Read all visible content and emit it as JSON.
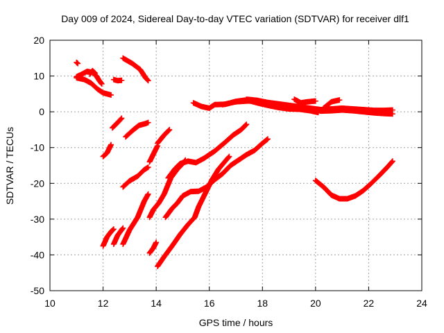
{
  "chart_data": {
    "type": "scatter",
    "title": "Day 009 of 2024, Sidereal Day-to-day VTEC variation (SDTVAR) for receiver dlf1",
    "xlabel": "GPS time / hours",
    "ylabel": "SDTVAR / TECUs",
    "xlim": [
      10,
      24
    ],
    "ylim": [
      -50,
      20
    ],
    "x_ticks": [
      10,
      12,
      14,
      16,
      18,
      20,
      22,
      24
    ],
    "y_ticks": [
      -50,
      -40,
      -30,
      -20,
      -10,
      0,
      10,
      20
    ],
    "x_tick_labels": [
      "10",
      "12",
      "14",
      "16",
      "18",
      "20",
      "22",
      "24"
    ],
    "y_tick_labels": [
      "-50",
      "-40",
      "-30",
      "-20",
      "-10",
      "0",
      "10",
      "20"
    ],
    "grid": true,
    "marker": "+",
    "color": "#ff0000",
    "series": [
      {
        "name": "arc-a",
        "points": [
          [
            11.0,
            13.8
          ],
          [
            11.05,
            13.5
          ]
        ]
      },
      {
        "name": "arc-b",
        "points": [
          [
            11.0,
            9.8
          ],
          [
            11.2,
            10.5
          ],
          [
            11.4,
            11.3
          ],
          [
            11.6,
            11.0
          ],
          [
            11.75,
            10.0
          ],
          [
            11.85,
            8.8
          ],
          [
            11.95,
            7.8
          ]
        ]
      },
      {
        "name": "arc-c",
        "points": [
          [
            11.0,
            9.5
          ],
          [
            11.3,
            9.0
          ],
          [
            11.55,
            8.0
          ],
          [
            11.8,
            6.3
          ],
          [
            12.0,
            5.3
          ],
          [
            12.3,
            4.7
          ]
        ]
      },
      {
        "name": "arc-d",
        "points": [
          [
            11.5,
            10.5
          ],
          [
            11.6,
            11.5
          ],
          [
            11.7,
            10.8
          ]
        ]
      },
      {
        "name": "arc-e",
        "points": [
          [
            12.4,
            9.0
          ],
          [
            12.55,
            8.7
          ],
          [
            12.7,
            8.8
          ]
        ]
      },
      {
        "name": "arc-f",
        "points": [
          [
            12.75,
            15.0
          ],
          [
            13.1,
            13.5
          ],
          [
            13.4,
            11.8
          ],
          [
            13.6,
            9.5
          ],
          [
            13.7,
            8.7
          ]
        ]
      },
      {
        "name": "arc-g",
        "points": [
          [
            12.35,
            -4.5
          ],
          [
            12.55,
            -3.0
          ],
          [
            12.7,
            -1.8
          ]
        ]
      },
      {
        "name": "arc-h",
        "points": [
          [
            12.85,
            -7.0
          ],
          [
            13.1,
            -5.3
          ],
          [
            13.35,
            -3.8
          ],
          [
            13.6,
            -3.3
          ],
          [
            13.7,
            -3.0
          ]
        ]
      },
      {
        "name": "arc-i",
        "points": [
          [
            12.0,
            -12.5
          ],
          [
            12.15,
            -11.5
          ],
          [
            12.3,
            -9.2
          ]
        ]
      },
      {
        "name": "arc-j",
        "points": [
          [
            12.75,
            -21.0
          ],
          [
            13.0,
            -19.3
          ],
          [
            13.3,
            -18.0
          ],
          [
            13.55,
            -16.2
          ],
          [
            13.7,
            -15.5
          ]
        ]
      },
      {
        "name": "arc-k",
        "points": [
          [
            12.0,
            -37.5
          ],
          [
            12.15,
            -35.0
          ],
          [
            12.3,
            -33.5
          ],
          [
            12.4,
            -32.8
          ]
        ]
      },
      {
        "name": "arc-l",
        "points": [
          [
            12.4,
            -37.0
          ],
          [
            12.55,
            -34.5
          ],
          [
            12.75,
            -32.5
          ]
        ]
      },
      {
        "name": "arc-m",
        "points": [
          [
            12.75,
            -37.0
          ],
          [
            13.0,
            -33.0
          ],
          [
            13.3,
            -29.5
          ],
          [
            13.55,
            -25.0
          ],
          [
            13.7,
            -23.0
          ]
        ]
      },
      {
        "name": "arc-n",
        "points": [
          [
            13.75,
            -14.0
          ],
          [
            13.95,
            -11.0
          ],
          [
            14.05,
            -9.5
          ]
        ]
      },
      {
        "name": "arc-o",
        "points": [
          [
            14.05,
            -8.8
          ],
          [
            14.3,
            -6.5
          ],
          [
            14.5,
            -5.0
          ]
        ]
      },
      {
        "name": "arc-p",
        "points": [
          [
            13.75,
            -29.5
          ],
          [
            13.9,
            -27.3
          ],
          [
            14.1,
            -25.5
          ],
          [
            14.3,
            -23.0
          ],
          [
            14.55,
            -18.5
          ],
          [
            14.8,
            -16.0
          ],
          [
            15.0,
            -14.5
          ],
          [
            15.1,
            -13.5
          ]
        ]
      },
      {
        "name": "arc-q",
        "points": [
          [
            13.75,
            -39.5
          ],
          [
            13.9,
            -38.0
          ],
          [
            14.0,
            -36.5
          ]
        ]
      },
      {
        "name": "arc-r",
        "points": [
          [
            14.45,
            -18.5
          ],
          [
            14.7,
            -16.0
          ],
          [
            14.9,
            -14.5
          ],
          [
            15.2,
            -13.8
          ],
          [
            15.5,
            -14.2
          ],
          [
            15.8,
            -13.0
          ],
          [
            16.2,
            -11.0
          ],
          [
            16.6,
            -8.5
          ],
          [
            16.9,
            -6.5
          ],
          [
            17.2,
            -5.0
          ],
          [
            17.4,
            -3.5
          ]
        ]
      },
      {
        "name": "arc-s",
        "points": [
          [
            14.05,
            -43.2
          ],
          [
            14.3,
            -40.5
          ],
          [
            14.6,
            -37.5
          ],
          [
            14.9,
            -34.3
          ],
          [
            15.2,
            -31.5
          ],
          [
            15.45,
            -29.5
          ],
          [
            15.6,
            -26.5
          ],
          [
            15.9,
            -22.0
          ],
          [
            16.1,
            -19.0
          ],
          [
            16.35,
            -16.0
          ],
          [
            16.6,
            -13.8
          ],
          [
            16.75,
            -12.5
          ]
        ]
      },
      {
        "name": "arc-t",
        "points": [
          [
            14.35,
            -29.5
          ],
          [
            14.6,
            -27.0
          ],
          [
            14.8,
            -25.5
          ],
          [
            15.0,
            -23.5
          ],
          [
            15.3,
            -22.3
          ],
          [
            15.6,
            -22.2
          ],
          [
            15.9,
            -21.0
          ],
          [
            16.2,
            -19.0
          ],
          [
            16.5,
            -17.3
          ],
          [
            16.8,
            -15.0
          ],
          [
            17.1,
            -13.5
          ],
          [
            17.4,
            -12.0
          ],
          [
            17.7,
            -10.8
          ],
          [
            18.0,
            -8.8
          ],
          [
            18.2,
            -7.6
          ]
        ]
      },
      {
        "name": "arc-u",
        "points": [
          [
            15.4,
            2.5
          ],
          [
            15.7,
            1.5
          ],
          [
            16.0,
            1.0
          ],
          [
            16.2,
            2.0
          ],
          [
            16.6,
            2.1
          ],
          [
            17.0,
            2.9
          ],
          [
            17.4,
            3.3
          ],
          [
            17.8,
            2.5
          ],
          [
            18.2,
            1.8
          ],
          [
            18.6,
            1.2
          ],
          [
            19.0,
            0.8
          ],
          [
            19.4,
            0.7
          ],
          [
            19.8,
            0.3
          ],
          [
            20.1,
            -0.2
          ]
        ]
      },
      {
        "name": "arc-v",
        "points": [
          [
            16.5,
            2.0
          ],
          [
            17.0,
            2.8
          ],
          [
            17.4,
            3.0
          ],
          [
            17.8,
            3.0
          ],
          [
            18.2,
            2.4
          ],
          [
            18.6,
            1.8
          ],
          [
            19.0,
            1.5
          ],
          [
            19.4,
            1.2
          ],
          [
            19.8,
            0.8
          ],
          [
            20.2,
            0.2
          ],
          [
            20.6,
            0.3
          ],
          [
            21.0,
            0.5
          ],
          [
            21.4,
            0.3
          ],
          [
            21.8,
            0.0
          ],
          [
            22.2,
            -0.3
          ],
          [
            22.6,
            -0.5
          ],
          [
            22.9,
            -0.6
          ]
        ]
      },
      {
        "name": "arc-w",
        "points": [
          [
            17.4,
            3.5
          ],
          [
            17.8,
            3.2
          ],
          [
            18.2,
            2.6
          ],
          [
            18.6,
            2.2
          ],
          [
            19.0,
            1.8
          ],
          [
            19.4,
            1.4
          ],
          [
            19.8,
            1.0
          ],
          [
            20.2,
            0.6
          ],
          [
            20.6,
            0.8
          ],
          [
            21.0,
            1.0
          ],
          [
            21.4,
            0.8
          ],
          [
            21.8,
            0.6
          ],
          [
            22.2,
            0.4
          ],
          [
            22.6,
            0.4
          ],
          [
            22.9,
            0.5
          ]
        ]
      },
      {
        "name": "arc-x",
        "points": [
          [
            19.2,
            3.5
          ],
          [
            19.45,
            2.5
          ],
          [
            19.7,
            2.8
          ],
          [
            20.0,
            3.0
          ]
        ]
      },
      {
        "name": "arc-y",
        "points": [
          [
            20.3,
            1.0
          ],
          [
            20.6,
            2.8
          ],
          [
            20.9,
            3.3
          ]
        ]
      },
      {
        "name": "arc-z",
        "points": [
          [
            20.0,
            -19.2
          ],
          [
            20.3,
            -21.0
          ],
          [
            20.6,
            -23.3
          ],
          [
            20.9,
            -24.3
          ],
          [
            21.2,
            -24.3
          ],
          [
            21.5,
            -23.5
          ],
          [
            21.8,
            -22.0
          ],
          [
            22.1,
            -20.0
          ],
          [
            22.4,
            -17.8
          ],
          [
            22.7,
            -15.5
          ],
          [
            22.9,
            -13.8
          ]
        ]
      }
    ]
  }
}
